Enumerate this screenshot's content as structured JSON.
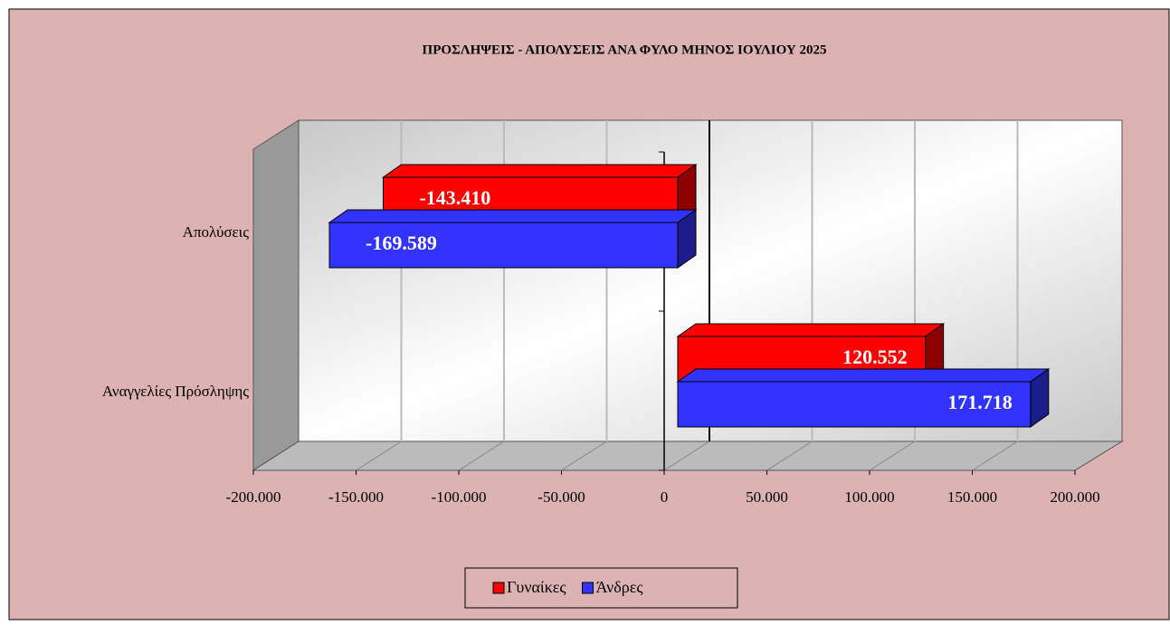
{
  "chart_data": {
    "type": "bar",
    "orientation": "horizontal",
    "title": "ΠΡΟΣΛΗΨΕΙΣ - ΑΠΟΛΥΣΕΙΣ ΑΝΑ ΦΥΛΟ ΜΗΝΟΣ  ΙΟΥΛΙΟΥ  2025",
    "categories": [
      "Απολύσεις",
      "Αναγγελίες Πρόσληψης"
    ],
    "series": [
      {
        "name": "Γυναίκες",
        "color": "#ff0000",
        "values": [
          -143410,
          120552
        ],
        "value_labels": [
          "-143.410",
          "120.552"
        ]
      },
      {
        "name": "Άνδρες",
        "color": "#3333ff",
        "values": [
          -169589,
          171718
        ],
        "value_labels": [
          "-169.589",
          "171.718"
        ]
      }
    ],
    "xlim": [
      -200000,
      200000
    ],
    "xticks": [
      {
        "value": -200000,
        "label": "-200.000"
      },
      {
        "value": -150000,
        "label": "-150.000"
      },
      {
        "value": -100000,
        "label": "-100.000"
      },
      {
        "value": -50000,
        "label": "-50.000"
      },
      0,
      {
        "value": 50000,
        "label": "50.000"
      },
      {
        "value": 100000,
        "label": "100.000"
      },
      {
        "value": 150000,
        "label": "150.000"
      },
      {
        "value": 200000,
        "label": "200.000"
      }
    ],
    "grid": true,
    "legend": "bottom"
  }
}
